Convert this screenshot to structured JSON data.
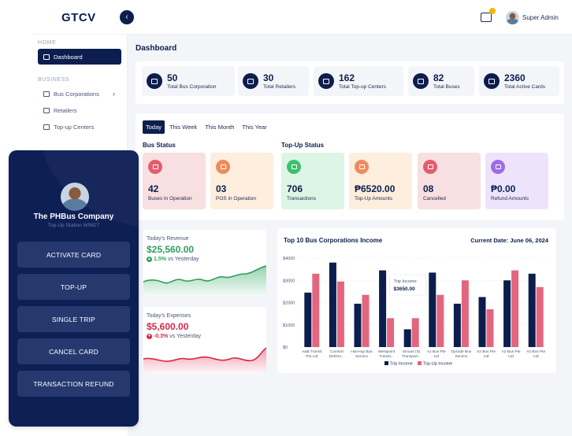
{
  "app": {
    "logo": "GTCV",
    "collapse_icon": "‹",
    "user_name": "Super Admin"
  },
  "sidebar": {
    "home_label": "HOME",
    "business_label": "BUSINESS",
    "items": [
      {
        "label": "Dashboard"
      },
      {
        "label": "Bus Corporations",
        "chevron": "›"
      },
      {
        "label": "Retailers"
      },
      {
        "label": "Top-up Centers"
      }
    ]
  },
  "dashboard": {
    "title": "Dashboard",
    "stats": [
      {
        "value": "50",
        "label": "Total Bus Corporation",
        "icon": "building-icon"
      },
      {
        "value": "30",
        "label": "Total Retailers",
        "icon": "store-icon"
      },
      {
        "value": "162",
        "label": "Total Top-up Centers",
        "icon": "wallet-icon"
      },
      {
        "value": "82",
        "label": "Total Buses",
        "icon": "bus-icon"
      },
      {
        "value": "2360",
        "label": "Total Active Cards",
        "icon": "card-icon"
      }
    ],
    "tabs": [
      "Today",
      "This Week",
      "This Month",
      "This Year"
    ],
    "bus_status_title": "Bus Status",
    "topup_status_title": "Top-Up Status",
    "bus_status": [
      {
        "value": "42",
        "label": "Buses In Operation",
        "color": "#f8dfe2",
        "icon_color": "#e35d6f"
      },
      {
        "value": "03",
        "label": "POS in Operation",
        "color": "#fdeedd",
        "icon_color": "#ee8c5e"
      }
    ],
    "topup_status": [
      {
        "value": "706",
        "label": "Transactions",
        "color": "#ddf5e4",
        "icon_color": "#3fbf6f"
      },
      {
        "value": "₱6520.00",
        "label": "Top-Up Amounts",
        "color": "#fdeedd",
        "icon_color": "#ee8c5e"
      },
      {
        "value": "08",
        "label": "Cancelled",
        "color": "#f8dfe2",
        "icon_color": "#e35d6f"
      },
      {
        "value": "₱0.00",
        "label": "Refund Amounts",
        "color": "#ede4fb",
        "icon_color": "#9c6ce6"
      }
    ],
    "revenue": {
      "title": "Today's Revenue",
      "value": "$25,560.00",
      "change": "1.5%",
      "suffix": "vs Yesterday",
      "direction": "up"
    },
    "expenses": {
      "title": "Today's Expenses",
      "value": "$5,600.00",
      "change": "-0.3%",
      "suffix": "vs Yesterday",
      "direction": "down"
    }
  },
  "chart_data": {
    "type": "bar",
    "title": "Top 10 Bus Corporations Income",
    "date_label": "Current Date: June 06, 2024",
    "categories": [
      "A&B Transit Pte Ltd",
      "Comfort DelGro...",
      "Hai-Hup Bus Service",
      "Westpoint Transit...",
      "Sinous (S) Transport...",
      "A2 Bus Pte Ltd",
      "Dysode Bus Service",
      "A2 Bus Pte Ltd",
      "A2 Bus Pte Ltd",
      "A2 Bus Pte Ltd"
    ],
    "series": [
      {
        "name": "Trip Income",
        "color": "#0b1e4d",
        "values": [
          2450,
          3800,
          1950,
          3450,
          800,
          3350,
          1950,
          2250,
          3000,
          3300
        ]
      },
      {
        "name": "Top-Up Income",
        "color": "#e3667e",
        "values": [
          3300,
          2950,
          2350,
          1300,
          1300,
          2350,
          3000,
          1700,
          3450,
          2700
        ]
      }
    ],
    "yticks": [
      "$4000",
      "$3000",
      "$2000",
      "$1000",
      "$0"
    ],
    "ylim": [
      0,
      4000
    ],
    "tooltip": {
      "title": "Trip Income:",
      "value": "$3650.00"
    },
    "legend": "bottom"
  },
  "mobile": {
    "company": "The PHBus Company",
    "station": "Top-Up Station W9827",
    "buttons": [
      "ACTIVATE CARD",
      "TOP-UP",
      "SINGLE TRIP",
      "CANCEL CARD",
      "TRANSACTION REFUND"
    ]
  }
}
